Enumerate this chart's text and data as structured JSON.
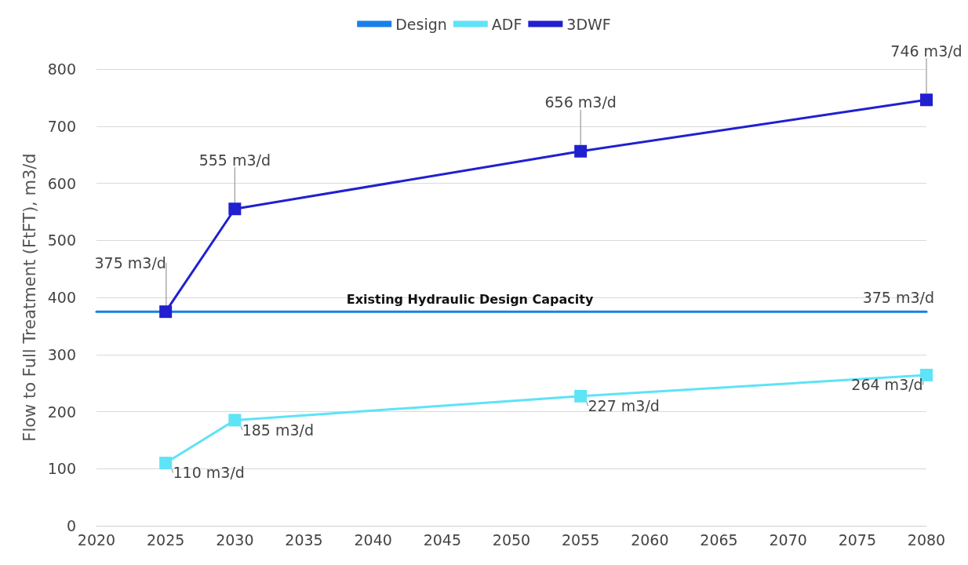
{
  "chart_data": {
    "type": "line",
    "ylabel": "Flow to Full Treatment (FtFT), m3/d",
    "xlim": [
      2020,
      2080
    ],
    "xticks": [
      2020,
      2025,
      2030,
      2035,
      2040,
      2045,
      2050,
      2055,
      2060,
      2065,
      2070,
      2075,
      2080
    ],
    "ylim": [
      0,
      800
    ],
    "yticks": [
      0,
      100,
      200,
      300,
      400,
      500,
      600,
      700,
      800
    ],
    "grid": "y",
    "legend": "top",
    "line_style": "solid",
    "series": [
      {
        "name": "Design",
        "color": "#1a7fe8",
        "marker": "none",
        "x": [
          2020,
          2080
        ],
        "values": [
          375,
          375
        ],
        "value_labels": [
          null,
          "375 m3/d"
        ]
      },
      {
        "name": "ADF",
        "color": "#5ee3f7",
        "marker": "square",
        "x": [
          2025,
          2030,
          2055,
          2080
        ],
        "values": [
          110,
          185,
          227,
          264
        ],
        "value_labels": [
          "110 m3/d",
          "185 m3/d",
          "227 m3/d",
          "264 m3/d"
        ]
      },
      {
        "name": "3DWF",
        "color": "#2020d0",
        "marker": "square",
        "x": [
          2025,
          2030,
          2055,
          2080
        ],
        "values": [
          375,
          555,
          656,
          746
        ],
        "value_labels": [
          "375 m3/d",
          "555 m3/d",
          "656 m3/d",
          "746 m3/d"
        ]
      }
    ],
    "annotations": [
      {
        "text": "Existing Hydraulic Design Capacity",
        "x": 2047,
        "y": 375
      }
    ]
  }
}
